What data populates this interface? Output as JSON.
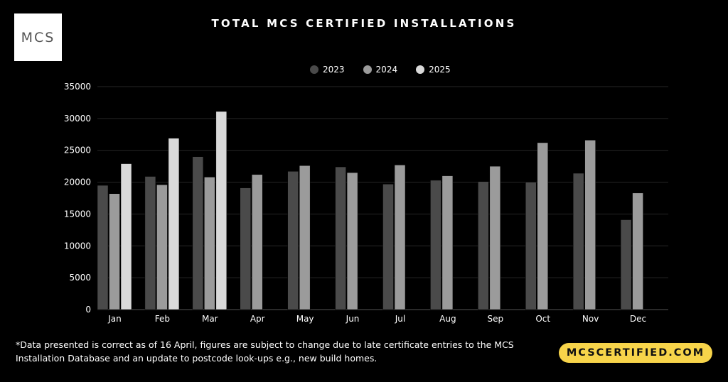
{
  "logo": {
    "text": "MCS"
  },
  "footer": {
    "note": "*Data presented is correct as of 16 April, figures are subject to change due to late certificate entries to the MCS Installation Database and an update to postcode look-ups e.g., new build homes.",
    "site": "MCSCERTIFIED.COM",
    "site_color": "#f7d44a"
  },
  "chart_data": {
    "type": "bar",
    "title": "TOTAL MCS CERTIFIED INSTALLATIONS",
    "xlabel": "",
    "ylabel": "",
    "ylim": [
      0,
      35000
    ],
    "yticks": [
      0,
      5000,
      10000,
      15000,
      20000,
      25000,
      30000,
      35000
    ],
    "grid": true,
    "legend_position": "top-center",
    "categories": [
      "Jan",
      "Feb",
      "Mar",
      "Apr",
      "May",
      "Jun",
      "Jul",
      "Aug",
      "Sep",
      "Oct",
      "Nov",
      "Dec"
    ],
    "series": [
      {
        "name": "2023",
        "color": "#4a4a4a",
        "values": [
          19500,
          20900,
          24000,
          19100,
          21700,
          22400,
          19700,
          20300,
          20100,
          20000,
          21400,
          14100
        ]
      },
      {
        "name": "2024",
        "color": "#9b9b9b",
        "values": [
          18200,
          19600,
          20800,
          21200,
          22600,
          21500,
          22700,
          21000,
          22500,
          26200,
          26600,
          18300
        ]
      },
      {
        "name": "2025",
        "color": "#d9d9d9",
        "values": [
          22900,
          26900,
          31100,
          null,
          null,
          null,
          null,
          null,
          null,
          null,
          null,
          null
        ]
      }
    ]
  }
}
